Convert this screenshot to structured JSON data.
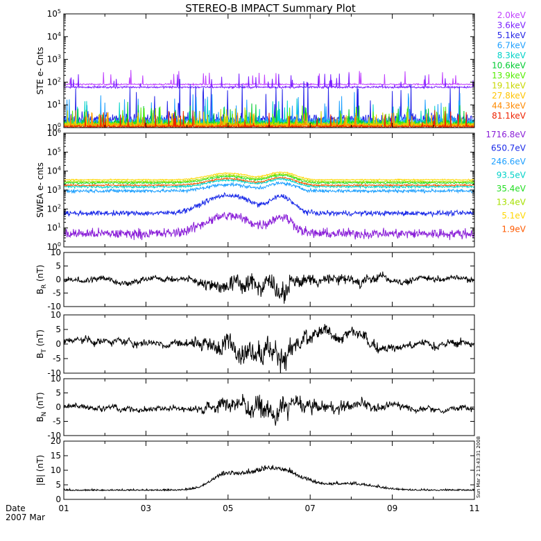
{
  "chart_data": {
    "type": "line",
    "title": "STEREO-B IMPACT Summary Plot",
    "x_axis": {
      "ticks": [
        "01",
        "03",
        "05",
        "07",
        "09",
        "11"
      ],
      "date_label": "Date",
      "month_label": "2007 Mar",
      "range_days": [
        1,
        11
      ]
    },
    "timestamp": "Sun Mar  2 13:43:31 2008",
    "panels": [
      {
        "id": "ste",
        "ylabel": "STE e- Cnts",
        "scale": "log",
        "ylim_exp": [
          0,
          5
        ],
        "series": [
          {
            "name": "2.0keV",
            "color": "#bf3fff",
            "level": 80,
            "spike": 3,
            "noise": 0.06
          },
          {
            "name": "3.6keV",
            "color": "#7a1fff",
            "level": 60,
            "spike": 3,
            "noise": 0.08
          },
          {
            "name": "5.1keV",
            "color": "#2323e8",
            "level": 2.2,
            "spike": 40,
            "noise": 0.5
          },
          {
            "name": "6.7keV",
            "color": "#1ea0ff",
            "level": 1.8,
            "spike": 15,
            "noise": 0.4
          },
          {
            "name": "8.3keV",
            "color": "#00d2c8",
            "level": 1.6,
            "spike": 8,
            "noise": 0.35
          },
          {
            "name": "10.6keV",
            "color": "#00cc30",
            "level": 1.5,
            "spike": 6,
            "noise": 0.3
          },
          {
            "name": "13.9keV",
            "color": "#55ee00",
            "level": 1.4,
            "spike": 5,
            "noise": 0.25
          },
          {
            "name": "19.1keV",
            "color": "#c8d800",
            "level": 1.35,
            "spike": 4,
            "noise": 0.2
          },
          {
            "name": "27.8keV",
            "color": "#ffc400",
            "level": 1.3,
            "spike": 3,
            "noise": 0.15
          },
          {
            "name": "44.3keV",
            "color": "#ff8a00",
            "level": 1.2,
            "spike": 3,
            "noise": 0.12
          },
          {
            "name": "81.1keV",
            "color": "#ee2200",
            "level": 1.1,
            "spike": 4,
            "noise": 0.1
          }
        ]
      },
      {
        "id": "swea",
        "ylabel": "SWEA e- cnts",
        "scale": "log",
        "ylim_exp": [
          0,
          6
        ],
        "series": [
          {
            "name": "1716.8eV",
            "color": "#8a1fd8",
            "level": 5,
            "noise": 0.5
          },
          {
            "name": "650.7eV",
            "color": "#1a2ae8",
            "level": 60,
            "noise": 0.25
          },
          {
            "name": "246.6eV",
            "color": "#1ea0ff",
            "level": 900,
            "noise": 0.18
          },
          {
            "name": "93.5eV",
            "color": "#00d2c8",
            "level": 1500,
            "noise": 0.12
          },
          {
            "name": "35.4eV",
            "color": "#22dd22",
            "level": 2400,
            "noise": 0.1
          },
          {
            "name": "13.4eV",
            "color": "#a6e000",
            "level": 2800,
            "noise": 0.08
          },
          {
            "name": "5.1eV",
            "color": "#ffd700",
            "level": 3500,
            "noise": 0.06
          },
          {
            "name": "1.9eV",
            "color": "#ff5a00",
            "level": 1800,
            "noise": 0.08
          }
        ]
      },
      {
        "id": "br",
        "ylabel_main": "B",
        "ylabel_sub": "R",
        "ylabel_tail": "(nT)",
        "scale": "linear",
        "ylim": [
          -10,
          10
        ],
        "yticks": [
          -10,
          -5,
          0,
          5,
          10
        ],
        "amp": 5,
        "offset": 0
      },
      {
        "id": "bt",
        "ylabel_main": "B",
        "ylabel_sub": "T",
        "ylabel_tail": "(nT)",
        "scale": "linear",
        "ylim": [
          -10,
          10
        ],
        "yticks": [
          -10,
          -5,
          0,
          5,
          10
        ],
        "amp": 6,
        "offset": 0.5
      },
      {
        "id": "bn",
        "ylabel_main": "B",
        "ylabel_sub": "N",
        "ylabel_tail": "(nT)",
        "scale": "linear",
        "ylim": [
          -10,
          10
        ],
        "yticks": [
          -10,
          -5,
          0,
          5,
          10
        ],
        "amp": 5,
        "offset": 0
      },
      {
        "id": "bmag",
        "ylabel": "|B| (nT)",
        "scale": "linear",
        "ylim": [
          0,
          20
        ],
        "yticks": [
          0,
          5,
          10,
          15,
          20
        ],
        "amp": 3,
        "offset": 3
      }
    ]
  }
}
